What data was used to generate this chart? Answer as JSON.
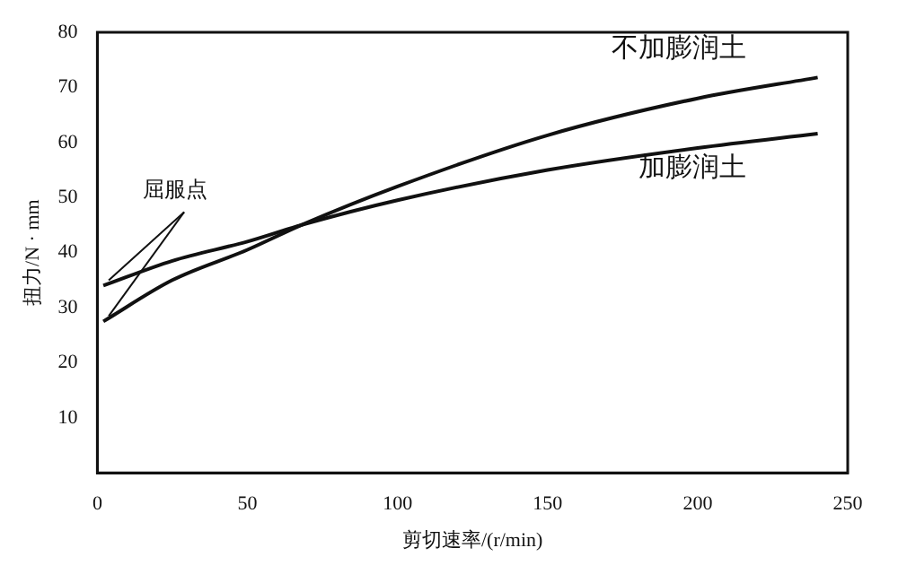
{
  "chart_data": {
    "type": "line",
    "xlabel": "剪切速率/(r/min)",
    "ylabel": "扭力/N · mm",
    "xlim": [
      0,
      250
    ],
    "xticks": [
      0,
      50,
      100,
      150,
      200,
      250
    ],
    "ylim": [
      0,
      80
    ],
    "yticks": [
      10,
      20,
      30,
      40,
      50,
      60,
      70,
      80
    ],
    "grid": false,
    "legend": false,
    "marker": "none",
    "line_style": "solid",
    "annotations": [
      {
        "text": "屈服点",
        "x": 2,
        "y": 34
      }
    ],
    "series": [
      {
        "name": "不加膨润土",
        "color": "#111111",
        "x": [
          2,
          25,
          50,
          68,
          100,
          150,
          200,
          240
        ],
        "values": [
          27.5,
          35,
          40.5,
          45,
          52,
          61.3,
          68,
          71.8
        ]
      },
      {
        "name": "加膨润土",
        "color": "#111111",
        "x": [
          2,
          25,
          50,
          68,
          100,
          150,
          200,
          240
        ],
        "values": [
          34,
          38.5,
          42,
          45,
          49.5,
          55,
          59,
          61.6
        ]
      }
    ]
  }
}
